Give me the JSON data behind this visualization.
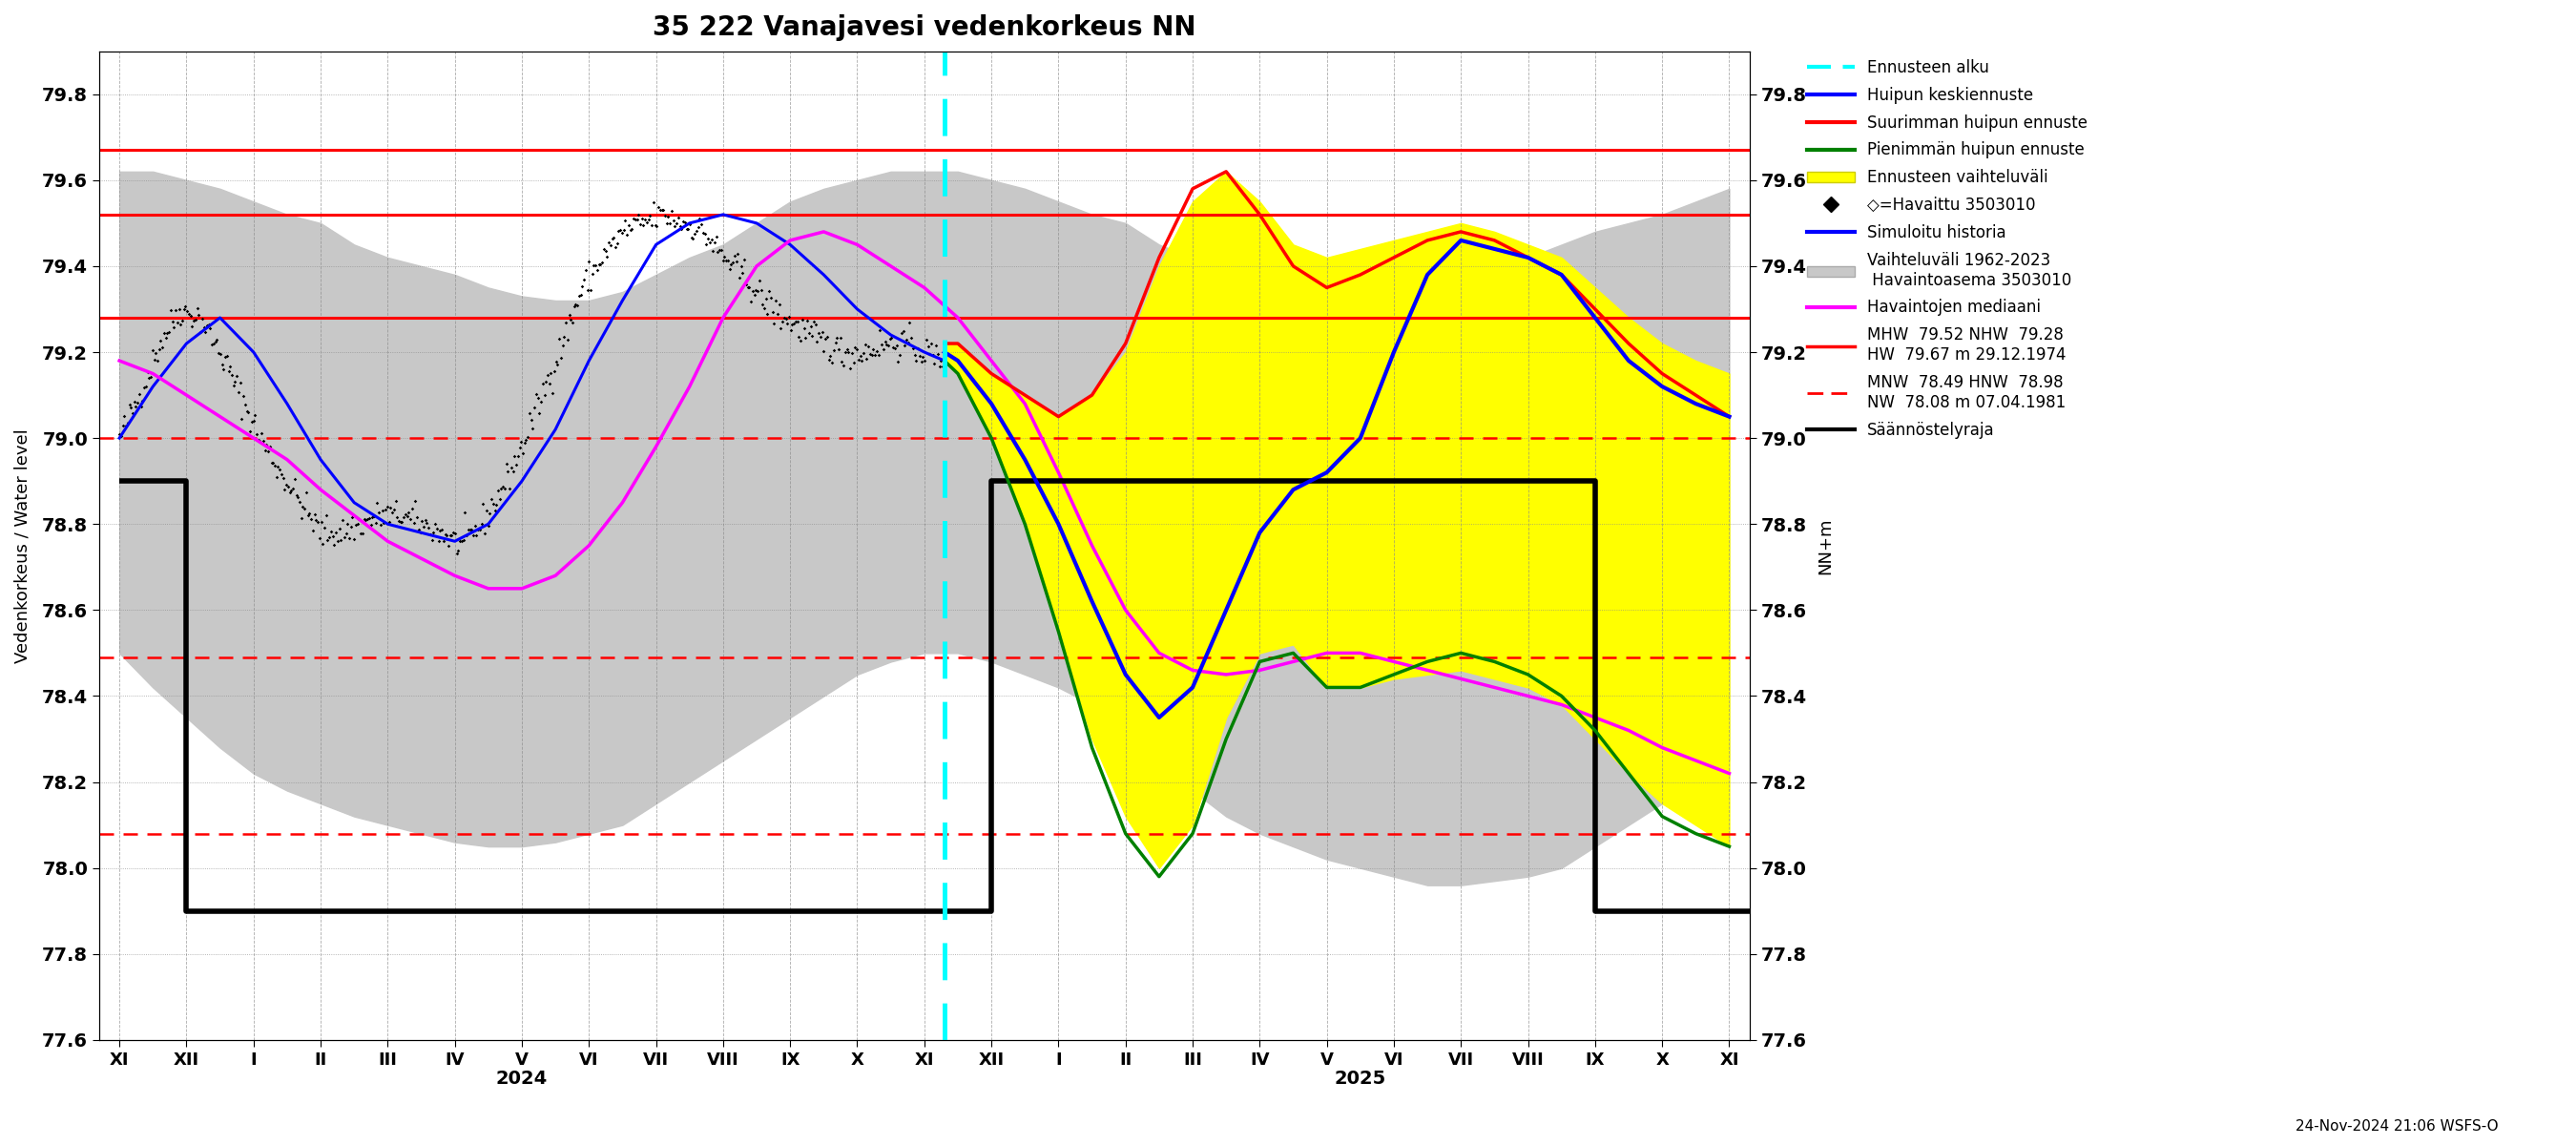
{
  "title": "35 222 Vanajavesi vedenkorkeus NN",
  "ylabel_left": "Vedenkorkeus / Water level",
  "ylabel_right": "NN+m",
  "date_label": "24-Nov-2024 21:06 WSFS-O",
  "ylim": [
    77.6,
    79.9
  ],
  "yticks": [
    77.6,
    77.8,
    78.0,
    78.2,
    78.4,
    78.6,
    78.8,
    79.0,
    79.2,
    79.4,
    79.6,
    79.8
  ],
  "red_solid_lines": [
    79.67,
    79.52,
    79.28
  ],
  "red_dashed_lines": [
    79.0,
    78.49,
    78.08
  ],
  "background_color": "white"
}
